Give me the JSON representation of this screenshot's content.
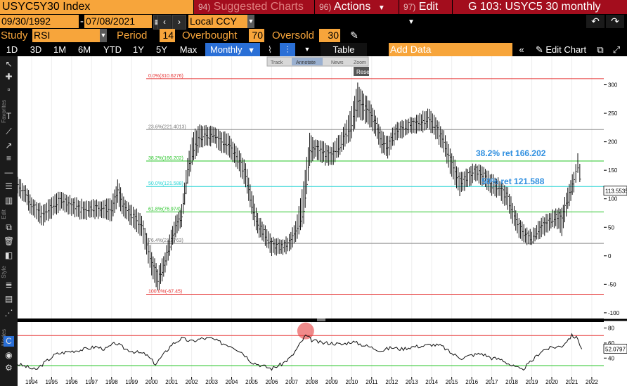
{
  "header": {
    "ticker": "USYC5Y30 Index",
    "suggested_num": "94)",
    "suggested_label": "Suggested Charts",
    "actions_num": "96)",
    "actions_label": "Actions",
    "edit_num": "97)",
    "edit_label": "Edit",
    "chart_title": "G 103: USYC5 30 monthly"
  },
  "dates": {
    "start": "09/30/1992",
    "sep": "-",
    "end": "07/08/2021",
    "currency": "Local CCY"
  },
  "study": {
    "study_label": "Study",
    "study_value": "RSI",
    "period_label": "Period",
    "period_value": "14",
    "overbought_label": "Overbought",
    "overbought_value": "70",
    "oversold_label": "Oversold",
    "oversold_value": "30"
  },
  "timeframes": [
    "1D",
    "3D",
    "1M",
    "6M",
    "YTD",
    "1Y",
    "5Y",
    "Max"
  ],
  "toolbar": {
    "frequency": "Monthly",
    "table_label": "Table",
    "add_data_placeholder": "Add Data",
    "edit_chart_label": "Edit Chart"
  },
  "annotation_toolbar": {
    "track": "Track",
    "annotate": "Annotate",
    "news": "News",
    "zoom": "Zoom",
    "reset": "Reset"
  },
  "side_tabs": {
    "favorites": "Favorites",
    "edit": "Edit",
    "style": "Style",
    "modes": "Modes"
  },
  "colors": {
    "accent_orange": "#f7a53b",
    "header_red": "#a30d1d",
    "active_blue": "#2a6fd6",
    "fib_red": "#e53030",
    "fib_green": "#27c427",
    "fib_grey": "#8a8a8a",
    "fib_cyan": "#22d4d4",
    "annotation_blue": "#2f8fe0"
  },
  "chart_data": [
    {
      "type": "line",
      "style": "bar (high-low-close)",
      "title": "",
      "xlabel": "",
      "ylabel": "",
      "xlim": [
        1993.3,
        2022.6
      ],
      "ylim": [
        -100,
        300
      ],
      "x_ticks": [
        "1994",
        "1995",
        "1996",
        "1997",
        "1998",
        "1999",
        "2000",
        "2001",
        "2002",
        "2003",
        "2004",
        "2005",
        "2006",
        "2007",
        "2008",
        "2009",
        "2010",
        "2011",
        "2012",
        "2013",
        "2014",
        "2015",
        "2016",
        "2017",
        "2018",
        "2019",
        "2020",
        "2021",
        "2022"
      ],
      "y_ticks": [
        300,
        250,
        200,
        150,
        100,
        50,
        0,
        -50,
        -100
      ],
      "last_value": "113.5535",
      "fib_levels": [
        {
          "label": "0.0%(310.6276)",
          "value": 310.6276,
          "color": "red"
        },
        {
          "label": "23.6%(221.4013)",
          "value": 221.4013,
          "color": "grey"
        },
        {
          "label": "38.2%(166.202)",
          "value": 166.202,
          "color": "green"
        },
        {
          "label": "50.0%(121.588)",
          "value": 121.588,
          "color": "cyan"
        },
        {
          "label": "61.8%(76.974)",
          "value": 76.974,
          "color": "green"
        },
        {
          "label": "76.4%(21.7763)",
          "value": 21.7763,
          "color": "grey"
        },
        {
          "label": "100.0%(-67.45)",
          "value": -67.45,
          "color": "red"
        }
      ],
      "annotations": [
        "38.2% ret 166.202",
        "50% ret 121.588"
      ],
      "series": [
        {
          "x": [
            1993.3,
            1993.7,
            1994.0,
            1994.5,
            1995.0,
            1995.5,
            1996.0,
            1996.5,
            1997.0,
            1997.5,
            1998.0,
            1998.3,
            1998.6,
            1999.0,
            1999.5,
            2000.0,
            2000.3,
            2000.6,
            2000.9,
            2001.2,
            2001.5,
            2001.8,
            2002.1,
            2002.4,
            2002.8,
            2003.1,
            2003.5,
            2003.9,
            2004.3,
            2004.7,
            2005.0,
            2005.3,
            2005.6,
            2006.0,
            2006.4,
            2006.8,
            2007.2,
            2007.6,
            2007.9,
            2008.2,
            2008.6,
            2009.0,
            2009.5,
            2010.0,
            2010.3,
            2010.6,
            2010.9,
            2011.2,
            2011.5,
            2011.8,
            2012.2,
            2012.6,
            2013.0,
            2013.4,
            2013.8,
            2014.2,
            2014.6,
            2015.0,
            2015.4,
            2015.8,
            2016.2,
            2016.6,
            2017.0,
            2017.4,
            2017.8,
            2018.2,
            2018.6,
            2019.0,
            2019.4,
            2019.8,
            2020.2,
            2020.5,
            2020.8,
            2021.1,
            2021.3,
            2021.5
          ],
          "close": [
            125,
            110,
            90,
            70,
            85,
            100,
            90,
            80,
            85,
            85,
            80,
            115,
            85,
            70,
            55,
            -10,
            -40,
            -20,
            20,
            50,
            70,
            150,
            190,
            205,
            210,
            215,
            200,
            190,
            170,
            140,
            90,
            55,
            40,
            20,
            15,
            20,
            40,
            80,
            180,
            190,
            180,
            175,
            200,
            230,
            270,
            260,
            250,
            230,
            200,
            190,
            220,
            225,
            230,
            235,
            240,
            225,
            200,
            160,
            130,
            140,
            150,
            140,
            125,
            120,
            100,
            60,
            40,
            30,
            50,
            60,
            70,
            70,
            100,
            130,
            160,
            120
          ],
          "high": [
            135,
            120,
            100,
            85,
            100,
            110,
            100,
            95,
            95,
            95,
            95,
            130,
            100,
            85,
            70,
            5,
            -25,
            -5,
            35,
            65,
            85,
            170,
            215,
            225,
            225,
            225,
            215,
            210,
            185,
            160,
            110,
            70,
            55,
            30,
            25,
            30,
            55,
            130,
            210,
            200,
            195,
            190,
            215,
            260,
            300,
            280,
            270,
            245,
            215,
            205,
            230,
            235,
            240,
            245,
            255,
            240,
            215,
            175,
            145,
            150,
            160,
            150,
            140,
            130,
            115,
            75,
            50,
            40,
            60,
            70,
            80,
            80,
            115,
            145,
            175,
            140
          ],
          "low": [
            110,
            95,
            75,
            55,
            70,
            85,
            75,
            65,
            70,
            70,
            65,
            95,
            70,
            55,
            35,
            -30,
            -60,
            -35,
            5,
            35,
            55,
            130,
            170,
            190,
            195,
            200,
            185,
            175,
            155,
            125,
            75,
            40,
            25,
            5,
            5,
            10,
            25,
            60,
            160,
            175,
            165,
            160,
            185,
            210,
            245,
            240,
            230,
            215,
            185,
            175,
            205,
            210,
            220,
            220,
            225,
            210,
            185,
            140,
            110,
            125,
            135,
            125,
            110,
            105,
            85,
            45,
            25,
            20,
            35,
            45,
            55,
            40,
            85,
            115,
            150,
            110
          ]
        }
      ]
    },
    {
      "type": "line",
      "title": "",
      "ylabel": "",
      "xlim": [
        1993.3,
        2022.6
      ],
      "ylim": [
        15,
        88
      ],
      "y_ticks": [
        80,
        60,
        40
      ],
      "last_value": "52.0797",
      "thresholds": [
        70,
        30
      ],
      "highlight": {
        "x": 2007.7,
        "y": 78
      },
      "series": [
        {
          "x": [
            1993.3,
            1993.8,
            1994.2,
            1994.7,
            1995.2,
            1995.7,
            1996.2,
            1996.7,
            1997.2,
            1997.7,
            1998.2,
            1998.7,
            1999.2,
            1999.7,
            2000.2,
            2000.7,
            2001.0,
            2001.5,
            2002.0,
            2002.5,
            2003.0,
            2003.5,
            2004.0,
            2004.5,
            2005.0,
            2005.5,
            2006.0,
            2006.5,
            2007.0,
            2007.4,
            2007.7,
            2008.0,
            2008.5,
            2009.0,
            2009.5,
            2010.0,
            2010.5,
            2011.0,
            2011.5,
            2012.0,
            2012.5,
            2013.0,
            2013.5,
            2014.0,
            2014.5,
            2015.0,
            2015.5,
            2016.0,
            2016.5,
            2017.0,
            2017.5,
            2018.0,
            2018.5,
            2019.0,
            2019.5,
            2020.0,
            2020.5,
            2021.0,
            2021.3,
            2021.5
          ],
          "values": [
            32,
            28,
            24,
            35,
            45,
            48,
            50,
            52,
            55,
            52,
            60,
            52,
            48,
            45,
            32,
            48,
            58,
            66,
            62,
            66,
            66,
            60,
            56,
            48,
            35,
            30,
            26,
            32,
            42,
            58,
            70,
            64,
            60,
            60,
            58,
            62,
            58,
            54,
            50,
            54,
            52,
            55,
            56,
            58,
            56,
            46,
            40,
            44,
            46,
            40,
            38,
            30,
            24,
            36,
            50,
            54,
            56,
            70,
            66,
            52
          ]
        }
      ]
    }
  ]
}
